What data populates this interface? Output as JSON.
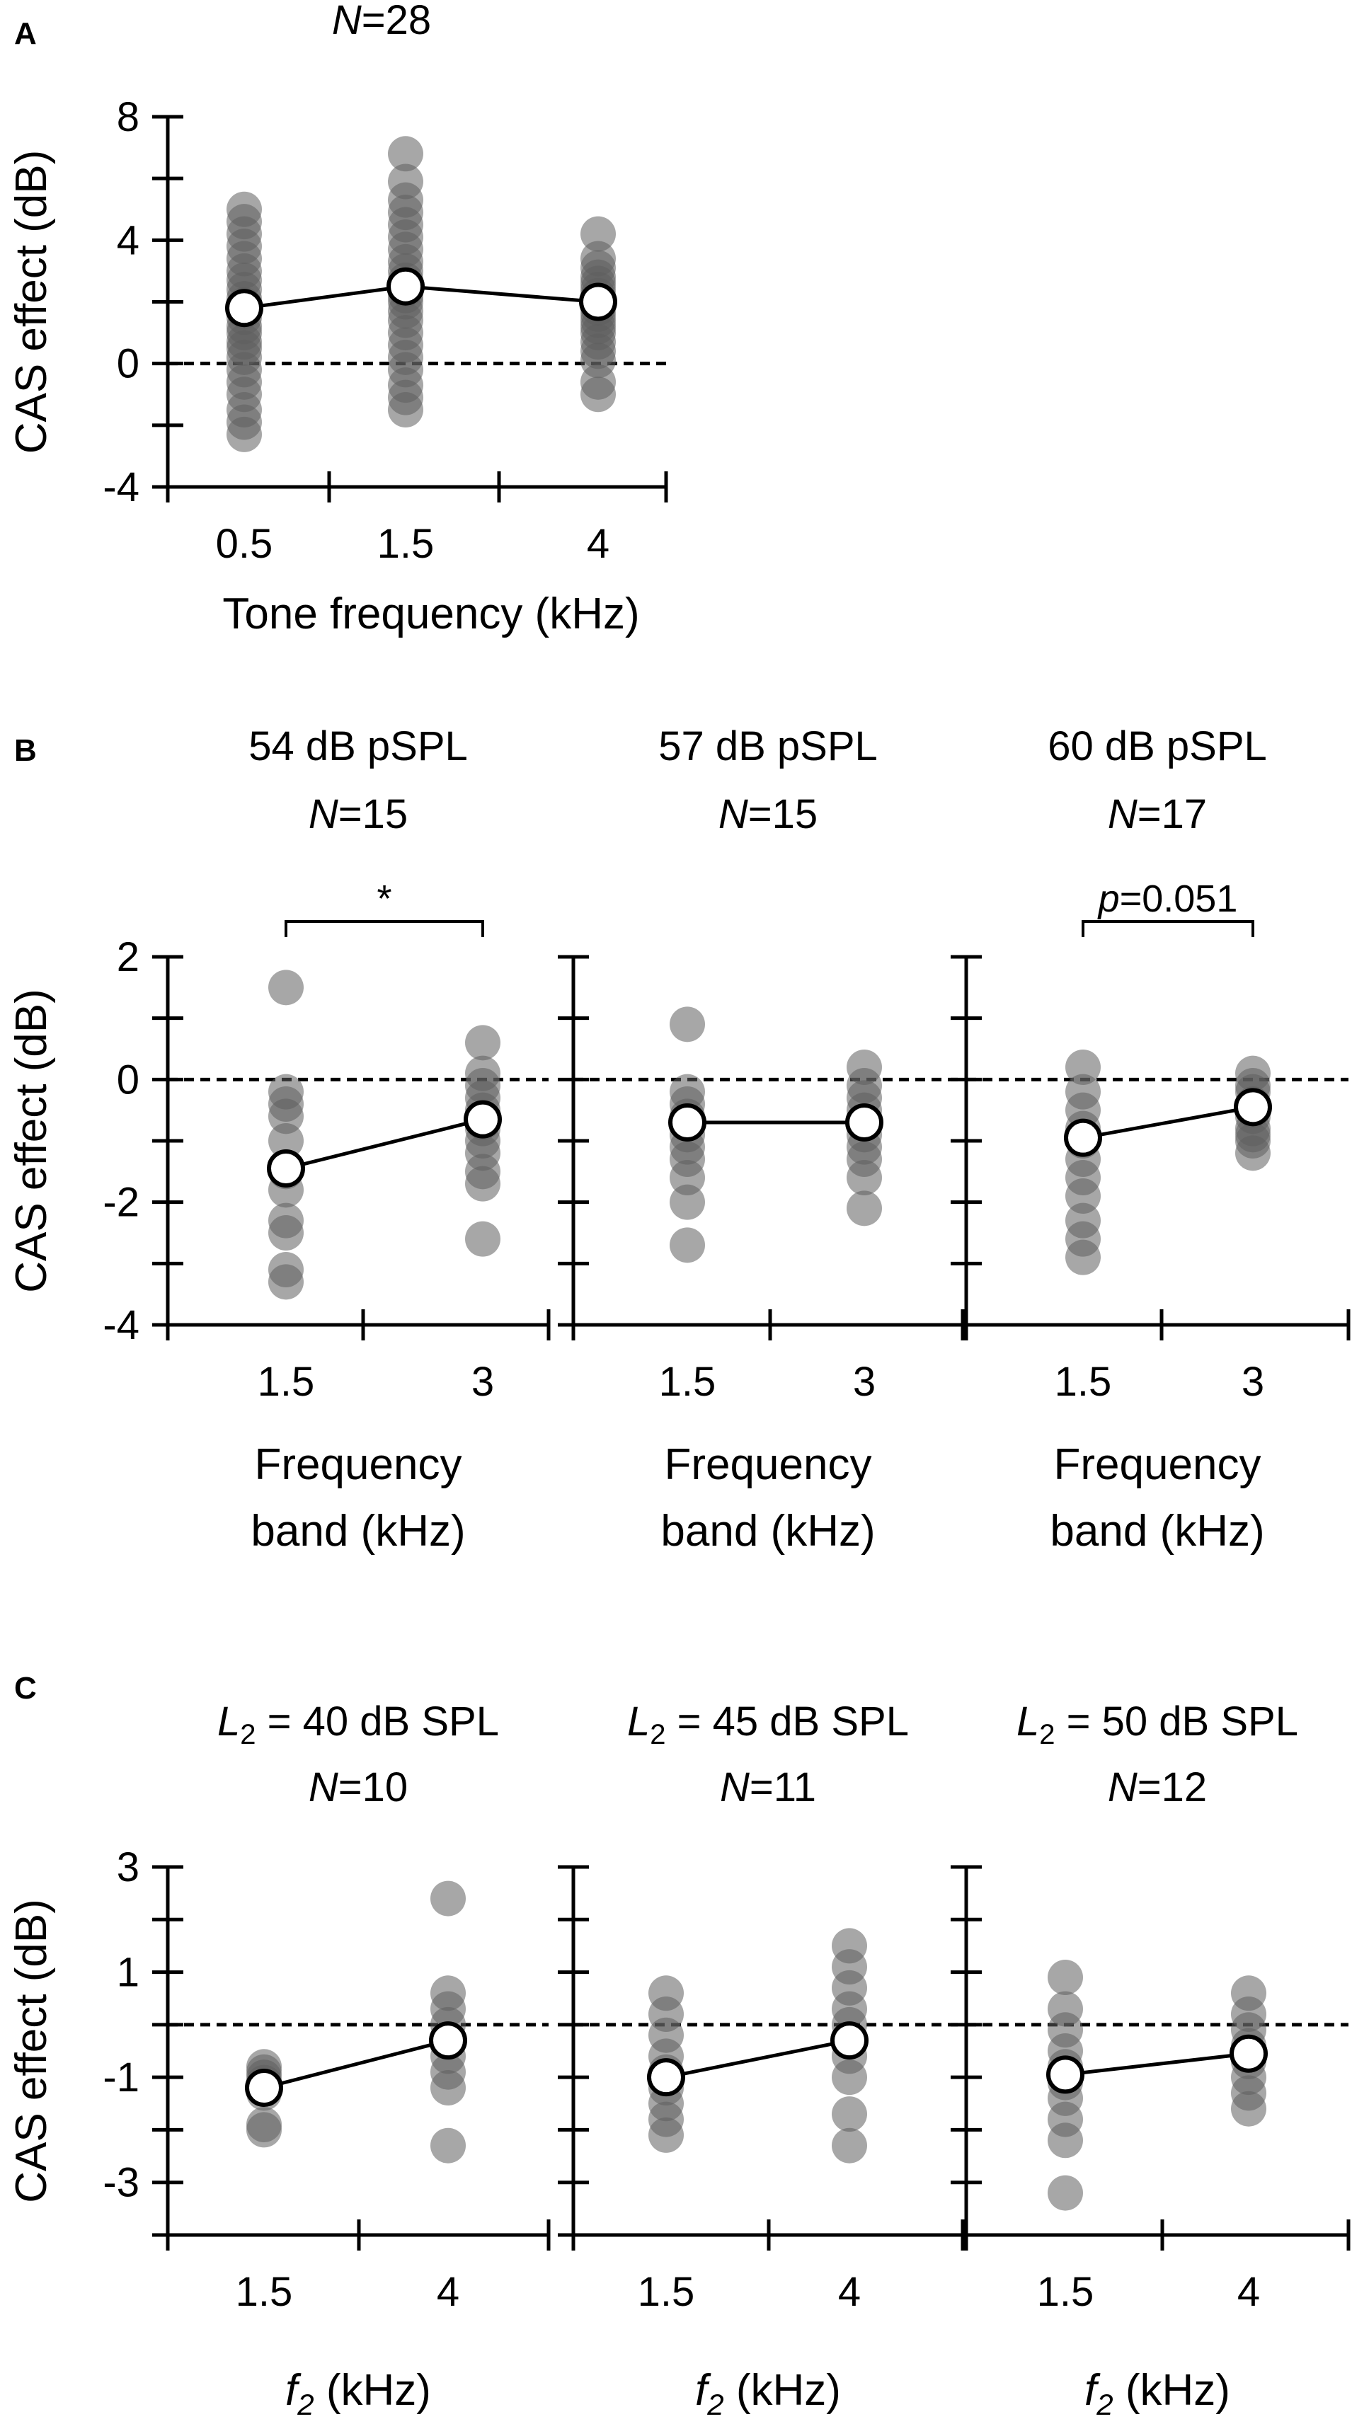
{
  "colors": {
    "dot": "#5f5f5f",
    "axis": "#000000",
    "mean_fill": "#ffffff"
  },
  "chart_data": [
    {
      "panel": "A",
      "type": "scatter",
      "n_label": "28",
      "title": "",
      "xlabel": "Tone frequency (kHz)",
      "ylabel": "CAS effect (dB)",
      "ylim": [
        -4,
        8
      ],
      "yticks": [
        "-4",
        "0",
        "4",
        "8"
      ],
      "categories": [
        "0.5",
        "1.5",
        "4"
      ],
      "individual": [
        [
          5.0,
          4.6,
          4.2,
          3.8,
          3.4,
          3.0,
          2.7,
          2.4,
          2.1,
          1.9,
          1.7,
          1.5,
          1.2,
          1.0,
          0.7,
          0.5,
          0.2,
          -0.2,
          -0.6,
          -1.0,
          -1.5,
          -1.9,
          -2.3
        ],
        [
          6.8,
          5.9,
          5.3,
          4.9,
          4.5,
          4.1,
          3.7,
          3.3,
          3.0,
          2.7,
          2.4,
          2.2,
          2.0,
          1.7,
          1.4,
          1.0,
          0.6,
          0.2,
          -0.2,
          -0.7,
          -1.1,
          -1.5
        ],
        [
          4.2,
          3.4,
          3.1,
          2.8,
          2.6,
          2.4,
          2.2,
          2.0,
          1.8,
          1.6,
          1.4,
          1.2,
          1.0,
          0.7,
          0.4,
          0.1,
          -0.6,
          -1.0
        ]
      ],
      "means": [
        1.8,
        2.5,
        2.0
      ],
      "bracket": null,
      "dashed_zero": true
    },
    {
      "panel": "B",
      "type": "scatter",
      "title": "54 dB pSPL",
      "n_label": "15",
      "xlabel": "Frequency band (kHz)",
      "xlabel_lines": [
        "Frequency",
        "band (kHz)"
      ],
      "ylabel": "CAS effect (dB)",
      "ylim": [
        -4,
        2
      ],
      "yticks": [
        "-4",
        "-2",
        "0",
        "2"
      ],
      "categories": [
        "1.5",
        "3"
      ],
      "individual": [
        [
          1.5,
          -0.2,
          -0.4,
          -0.6,
          -1.0,
          -1.5,
          -1.8,
          -2.3,
          -2.5,
          -3.1,
          -3.3
        ],
        [
          0.6,
          0.1,
          -0.1,
          -0.3,
          -0.5,
          -0.7,
          -0.8,
          -1.0,
          -1.2,
          -1.5,
          -1.7,
          -2.6
        ]
      ],
      "means": [
        -1.45,
        -0.65
      ],
      "bracket": {
        "label": "*",
        "italic_prefix": ""
      },
      "dashed_zero": true
    },
    {
      "panel": "B",
      "type": "scatter",
      "title": "57 dB pSPL",
      "n_label": "15",
      "xlabel": "Frequency band (kHz)",
      "xlabel_lines": [
        "Frequency",
        "band (kHz)"
      ],
      "ylabel": "",
      "ylim": [
        -4,
        2
      ],
      "yticks": [
        "-4",
        "-2",
        "0",
        "2"
      ],
      "categories": [
        "1.5",
        "3"
      ],
      "individual": [
        [
          0.9,
          -0.2,
          -0.4,
          -0.6,
          -0.9,
          -1.1,
          -1.3,
          -1.6,
          -2.0,
          -2.7
        ],
        [
          0.2,
          -0.1,
          -0.3,
          -0.5,
          -0.7,
          -0.9,
          -1.1,
          -1.3,
          -1.6,
          -2.1
        ]
      ],
      "means": [
        -0.7,
        -0.7
      ],
      "bracket": null,
      "dashed_zero": true
    },
    {
      "panel": "B",
      "type": "scatter",
      "title": "60 dB pSPL",
      "n_label": "17",
      "xlabel": "Frequency band (kHz)",
      "xlabel_lines": [
        "Frequency",
        "band (kHz)"
      ],
      "ylabel": "",
      "ylim": [
        -4,
        2
      ],
      "yticks": [
        "-4",
        "-2",
        "0",
        "2"
      ],
      "categories": [
        "1.5",
        "3"
      ],
      "individual": [
        [
          0.2,
          -0.2,
          -0.5,
          -0.8,
          -1.0,
          -1.3,
          -1.6,
          -1.9,
          -2.3,
          -2.6,
          -2.9
        ],
        [
          0.1,
          -0.1,
          -0.2,
          -0.4,
          -0.5,
          -0.6,
          -0.8,
          -0.9,
          -1.0,
          -1.2
        ]
      ],
      "means": [
        -0.95,
        -0.45
      ],
      "bracket": {
        "label": "=0.051",
        "italic_prefix": "p"
      },
      "dashed_zero": true
    },
    {
      "panel": "C",
      "type": "scatter",
      "title": "= 40 dB SPL",
      "title_var": "L",
      "title_sub": "2",
      "n_label": "10",
      "xlabel": "f2 (kHz)",
      "xlabel_var": "f",
      "xlabel_sub": "2",
      "xlabel_rest": "(kHz)",
      "ylabel": "CAS effect (dB)",
      "ylim": [
        -4,
        3
      ],
      "yticks": [
        "-3",
        "-1",
        "1",
        "3"
      ],
      "categories": [
        "1.5",
        "4"
      ],
      "individual": [
        [
          -0.8,
          -0.9,
          -1.0,
          -1.1,
          -1.2,
          -1.3,
          -1.9,
          -2.0
        ],
        [
          2.4,
          0.6,
          0.3,
          0.0,
          -0.3,
          -0.6,
          -0.9,
          -1.2,
          -2.3
        ]
      ],
      "means": [
        -1.2,
        -0.3
      ],
      "bracket": null,
      "dashed_zero": true
    },
    {
      "panel": "C",
      "type": "scatter",
      "title": "= 45 dB SPL",
      "title_var": "L",
      "title_sub": "2",
      "n_label": "11",
      "xlabel": "f2 (kHz)",
      "xlabel_var": "f",
      "xlabel_sub": "2",
      "xlabel_rest": "(kHz)",
      "ylabel": "",
      "ylim": [
        -4,
        3
      ],
      "yticks": [
        "-3",
        "-1",
        "1",
        "3"
      ],
      "categories": [
        "1.5",
        "4"
      ],
      "individual": [
        [
          0.6,
          0.2,
          -0.2,
          -0.6,
          -0.9,
          -1.2,
          -1.5,
          -1.8,
          -2.1
        ],
        [
          1.5,
          1.1,
          0.7,
          0.3,
          0.0,
          -0.3,
          -0.6,
          -1.0,
          -1.7,
          -2.3
        ]
      ],
      "means": [
        -1.0,
        -0.3
      ],
      "bracket": null,
      "dashed_zero": true
    },
    {
      "panel": "C",
      "type": "scatter",
      "title": "= 50 dB SPL",
      "title_var": "L",
      "title_sub": "2",
      "n_label": "12",
      "xlabel": "f2 (kHz)",
      "xlabel_var": "f",
      "xlabel_sub": "2",
      "xlabel_rest": "(kHz)",
      "ylabel": "",
      "ylim": [
        -4,
        3
      ],
      "yticks": [
        "-3",
        "-1",
        "1",
        "3"
      ],
      "categories": [
        "1.5",
        "4"
      ],
      "individual": [
        [
          0.9,
          0.3,
          -0.1,
          -0.5,
          -0.8,
          -1.1,
          -1.4,
          -1.8,
          -2.2,
          -3.2
        ],
        [
          0.6,
          0.2,
          -0.1,
          -0.4,
          -0.7,
          -1.0,
          -1.3,
          -1.6
        ]
      ],
      "means": [
        -0.95,
        -0.55
      ],
      "bracket": null,
      "dashed_zero": true
    }
  ]
}
